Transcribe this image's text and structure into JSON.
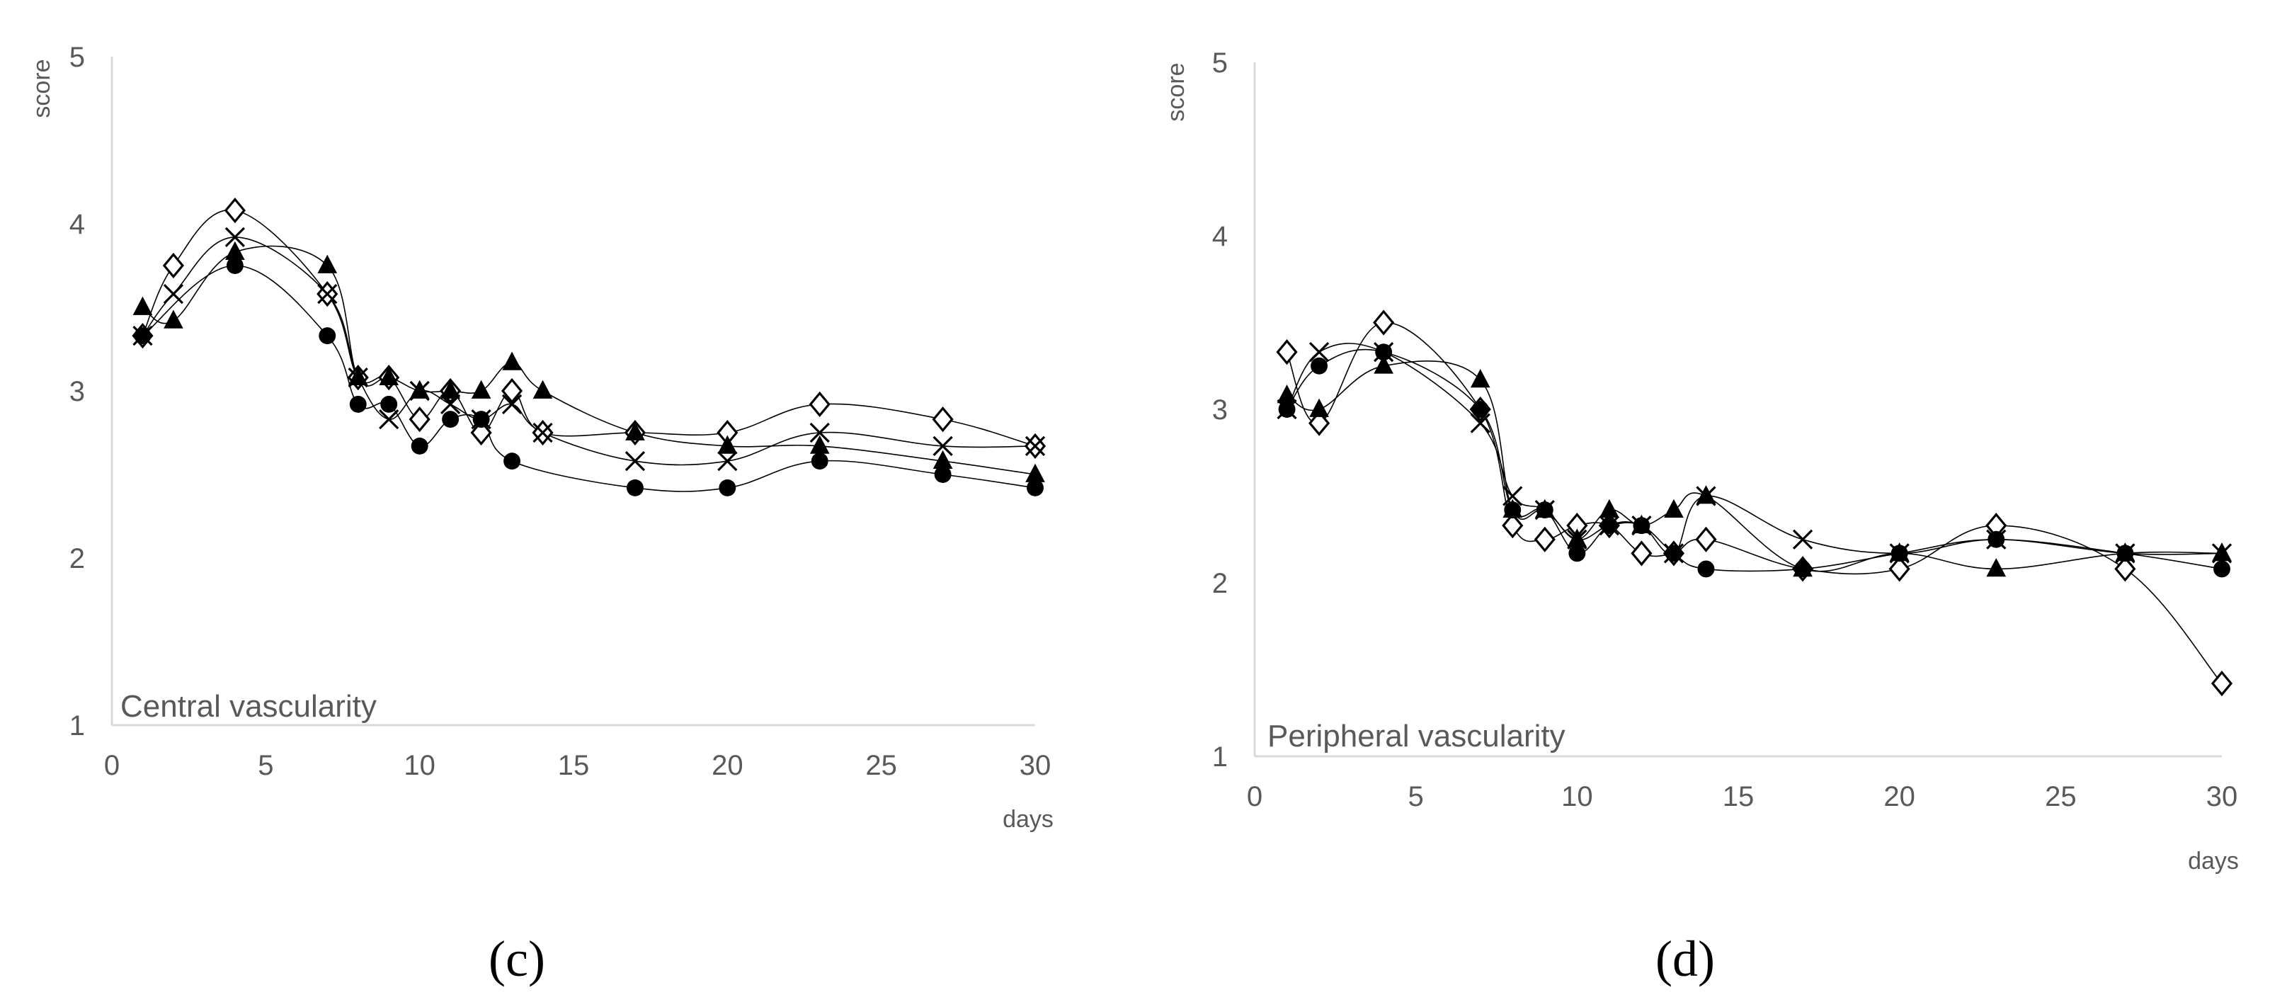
{
  "chart_data": [
    {
      "type": "scatter",
      "panel_label": "(c)",
      "title": "Central vascularity",
      "xlabel": "days",
      "ylabel": "score",
      "xlim": [
        0,
        30
      ],
      "ylim": [
        1,
        5
      ],
      "xticks": [
        0,
        5,
        10,
        15,
        20,
        25,
        30
      ],
      "yticks": [
        1,
        2,
        3,
        4,
        5
      ],
      "grid": false,
      "legend": "none",
      "x": [
        1,
        2,
        4,
        7,
        8,
        9,
        10,
        11,
        12,
        13,
        14,
        17,
        20,
        23,
        27,
        30
      ],
      "series": [
        {
          "marker": "diamond",
          "values": [
            3.33,
            3.75,
            4.08,
            3.58,
            3.08,
            3.08,
            2.83,
            3.0,
            2.75,
            3.0,
            2.75,
            2.75,
            2.75,
            2.92,
            2.83,
            2.67
          ]
        },
        {
          "marker": "x",
          "values": [
            3.33,
            3.58,
            3.92,
            3.58,
            3.08,
            2.83,
            3.0,
            2.92,
            2.83,
            2.92,
            2.75,
            2.58,
            2.58,
            2.75,
            2.67,
            2.67
          ]
        },
        {
          "marker": "triangle",
          "values": [
            3.5,
            3.42,
            3.83,
            3.75,
            3.08,
            3.08,
            3.0,
            3.0,
            3.0,
            3.17,
            3.0,
            2.75,
            2.67,
            2.67,
            2.58,
            2.5
          ]
        },
        {
          "marker": "circle",
          "values": [
            3.33,
            null,
            3.75,
            3.33,
            2.92,
            2.92,
            2.67,
            2.83,
            2.83,
            2.58,
            null,
            2.42,
            2.42,
            2.58,
            2.5,
            2.42
          ]
        }
      ]
    },
    {
      "type": "scatter",
      "panel_label": "(d)",
      "title": "Peripheral vascularity",
      "xlabel": "days",
      "ylabel": "score",
      "xlim": [
        0,
        30
      ],
      "ylim": [
        1,
        5
      ],
      "xticks": [
        0,
        5,
        10,
        15,
        20,
        25,
        30
      ],
      "yticks": [
        1,
        2,
        3,
        4,
        5
      ],
      "grid": false,
      "legend": "none",
      "x": [
        1,
        2,
        4,
        7,
        8,
        9,
        10,
        11,
        12,
        13,
        14,
        17,
        20,
        23,
        27,
        30
      ],
      "series": [
        {
          "marker": "diamond",
          "values": [
            3.33,
            2.92,
            3.5,
            3.0,
            2.33,
            2.25,
            2.33,
            2.33,
            2.17,
            2.17,
            2.25,
            2.08,
            2.08,
            2.33,
            2.08,
            1.42
          ]
        },
        {
          "marker": "x",
          "values": [
            3.0,
            3.33,
            3.33,
            2.92,
            2.5,
            2.42,
            2.25,
            2.33,
            2.33,
            2.17,
            2.5,
            2.25,
            2.17,
            2.25,
            2.17,
            2.17
          ]
        },
        {
          "marker": "triangle",
          "values": [
            3.08,
            3.0,
            3.25,
            3.17,
            2.42,
            2.42,
            2.25,
            2.42,
            2.33,
            2.42,
            2.5,
            2.08,
            2.17,
            2.08,
            2.17,
            2.17
          ]
        },
        {
          "marker": "circle",
          "values": [
            3.0,
            3.25,
            3.33,
            3.0,
            2.42,
            2.42,
            2.17,
            2.33,
            2.33,
            2.17,
            2.08,
            2.08,
            2.17,
            2.25,
            2.17,
            2.08
          ]
        }
      ]
    }
  ]
}
